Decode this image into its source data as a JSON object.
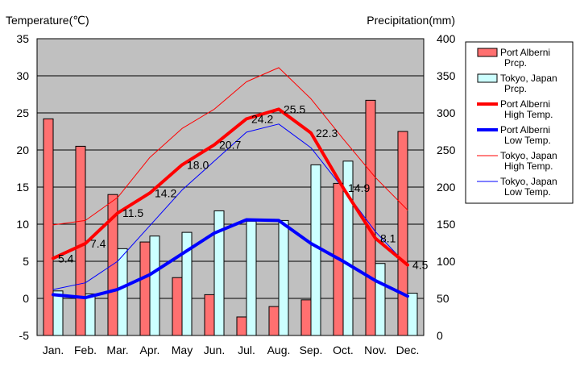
{
  "chart_data": {
    "type": "bar",
    "left_axis_title": "Temperature(℃)",
    "right_axis_title": "Precipitation(mm)",
    "categories": [
      "Jan.",
      "Feb.",
      "Mar.",
      "Apr.",
      "May",
      "Jun.",
      "Jul.",
      "Aug.",
      "Sep.",
      "Oct.",
      "Nov.",
      "Dec."
    ],
    "left_axis": {
      "ylim": [
        -5,
        35
      ],
      "ticks": [
        -5,
        0,
        5,
        10,
        15,
        20,
        25,
        30,
        35
      ]
    },
    "right_axis": {
      "ylim": [
        0,
        400
      ],
      "ticks": [
        0,
        50,
        100,
        150,
        200,
        250,
        300,
        350,
        400
      ]
    },
    "grid": "horizontal",
    "plot_background": "#c0c0c0",
    "legend_position": "right",
    "bar_series": [
      {
        "name": "Port Alberni\nPrcp.",
        "color": "#ff7070",
        "axis": "right",
        "values": [
          292,
          255,
          190,
          126,
          78,
          55,
          25,
          39,
          48,
          205,
          317,
          275
        ]
      },
      {
        "name": "Tokyo, Japan\nPrcp.",
        "color": "#ccffff",
        "axis": "right",
        "values": [
          60,
          56,
          117,
          134,
          139,
          168,
          154,
          155,
          230,
          235,
          97,
          57
        ]
      }
    ],
    "line_series": [
      {
        "name": "Port Alberni\nHigh Temp.",
        "color": "#ff0000",
        "width": 4,
        "axis": "left",
        "values": [
          5.4,
          7.4,
          11.5,
          14.2,
          18.0,
          20.7,
          24.2,
          25.5,
          22.3,
          14.9,
          8.1,
          4.5
        ],
        "labels": [
          "5.4",
          "7.4",
          "11.5",
          "14.2",
          "18.0",
          "20.7",
          "24.2",
          "25.5",
          "22.3",
          "14.9",
          "8.1",
          "4.5"
        ]
      },
      {
        "name": "Port Alberni\nLow Temp.",
        "color": "#0000ff",
        "width": 4,
        "axis": "left",
        "values": [
          0.5,
          0.1,
          1.2,
          3.2,
          6.0,
          8.8,
          10.6,
          10.5,
          7.4,
          5.0,
          2.4,
          0.3
        ]
      },
      {
        "name": "Tokyo, Japan\nHigh Temp.",
        "color": "#ff0000",
        "width": 1,
        "axis": "left",
        "values": [
          9.9,
          10.5,
          13.6,
          19.0,
          22.9,
          25.5,
          29.2,
          31.1,
          26.9,
          21.5,
          16.3,
          11.9
        ]
      },
      {
        "name": "Tokyo, Japan\nLow Temp.",
        "color": "#0000ff",
        "width": 1,
        "axis": "left",
        "values": [
          1.2,
          2.1,
          5.0,
          9.8,
          14.6,
          18.5,
          22.4,
          23.5,
          20.3,
          14.8,
          9.0,
          4.4
        ]
      }
    ]
  }
}
